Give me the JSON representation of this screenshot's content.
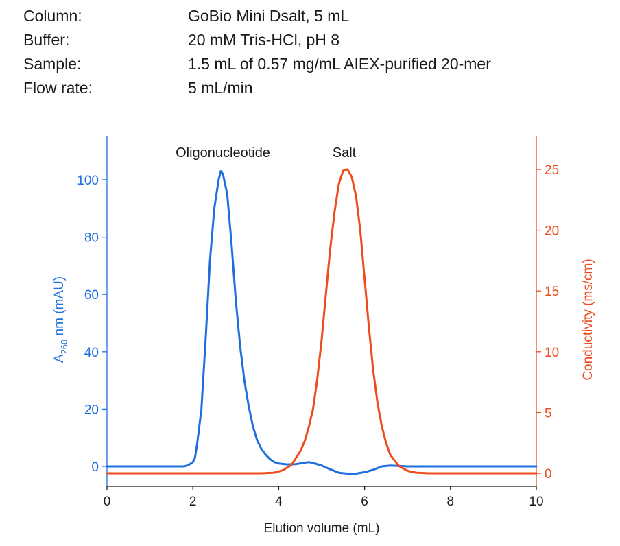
{
  "info": [
    {
      "label": "Column:",
      "value": "GoBio Mini Dsalt, 5 mL"
    },
    {
      "label": "Buffer:",
      "value": "20 mM Tris-HCl, pH 8"
    },
    {
      "label": "Sample:",
      "value": "1.5 mL of 0.57 mg/mL AIEX-purified 20-mer"
    },
    {
      "label": "Flow rate:",
      "value": "5 mL/min"
    }
  ],
  "chart_data": {
    "type": "line",
    "xlabel": "Elution volume (mL)",
    "xlim": [
      0,
      10
    ],
    "xticks": [
      0,
      2,
      4,
      6,
      8,
      10
    ],
    "ylabel_left_main": "A",
    "ylabel_left_sub": "260",
    "ylabel_left_rest": " nm (mAU)",
    "ylabel_right": "Conductivity (ms/cm)",
    "ylim_left": [
      -3,
      115
    ],
    "yticks_left": [
      0,
      20,
      40,
      60,
      80,
      100
    ],
    "ylim_right": [
      -0.6,
      27.5
    ],
    "yticks_right": [
      0,
      5,
      10,
      15,
      20,
      25
    ],
    "colors": {
      "left": "#1f6fe0",
      "right": "#f04a1f"
    },
    "annotations": [
      {
        "text": "Oligonucleotide",
        "x": 2.7,
        "y": 104
      },
      {
        "text": "Salt",
        "x": 5.55,
        "y": 104
      }
    ],
    "series": [
      {
        "axis": "left",
        "color": "#1f6fe0",
        "x": [
          0,
          0.5,
          1.0,
          1.5,
          1.8,
          1.9,
          2.0,
          2.05,
          2.1,
          2.2,
          2.3,
          2.4,
          2.5,
          2.6,
          2.65,
          2.7,
          2.8,
          2.9,
          3.0,
          3.1,
          3.2,
          3.3,
          3.4,
          3.5,
          3.6,
          3.7,
          3.8,
          3.9,
          4.0,
          4.2,
          4.4,
          4.6,
          4.7,
          4.8,
          5.0,
          5.2,
          5.4,
          5.6,
          5.8,
          6.0,
          6.2,
          6.4,
          6.6,
          7.0,
          7.5,
          8.0,
          8.5,
          9.0,
          9.5,
          10.0
        ],
        "y": [
          0,
          0,
          0,
          0,
          0,
          0.5,
          1.5,
          3,
          8,
          20,
          45,
          72,
          90,
          100,
          103,
          102,
          95,
          78,
          58,
          42,
          30,
          21,
          14,
          9,
          6,
          4,
          2.5,
          1.5,
          1,
          0.7,
          0.8,
          1.3,
          1.5,
          1.2,
          0.3,
          -1,
          -2.2,
          -2.5,
          -2.5,
          -2,
          -1.2,
          0,
          0.3,
          0,
          0,
          0,
          0,
          0,
          0,
          0
        ]
      },
      {
        "axis": "right",
        "color": "#f04a1f",
        "x": [
          0,
          1,
          2,
          3,
          3.6,
          3.9,
          4.1,
          4.3,
          4.5,
          4.6,
          4.7,
          4.8,
          4.9,
          5.0,
          5.1,
          5.2,
          5.3,
          5.4,
          5.5,
          5.6,
          5.7,
          5.8,
          5.9,
          6.0,
          6.1,
          6.2,
          6.3,
          6.4,
          6.5,
          6.6,
          6.8,
          7.0,
          7.2,
          7.5,
          8,
          9,
          10
        ],
        "y": [
          0,
          0,
          0,
          0,
          0,
          0.05,
          0.25,
          0.7,
          1.8,
          2.6,
          3.8,
          5.3,
          7.8,
          11,
          14.8,
          18.5,
          21.5,
          23.8,
          24.9,
          25,
          24.4,
          22.8,
          20,
          16,
          12,
          8.5,
          5.8,
          3.9,
          2.5,
          1.5,
          0.6,
          0.2,
          0.05,
          0,
          0,
          0,
          0
        ]
      }
    ]
  }
}
